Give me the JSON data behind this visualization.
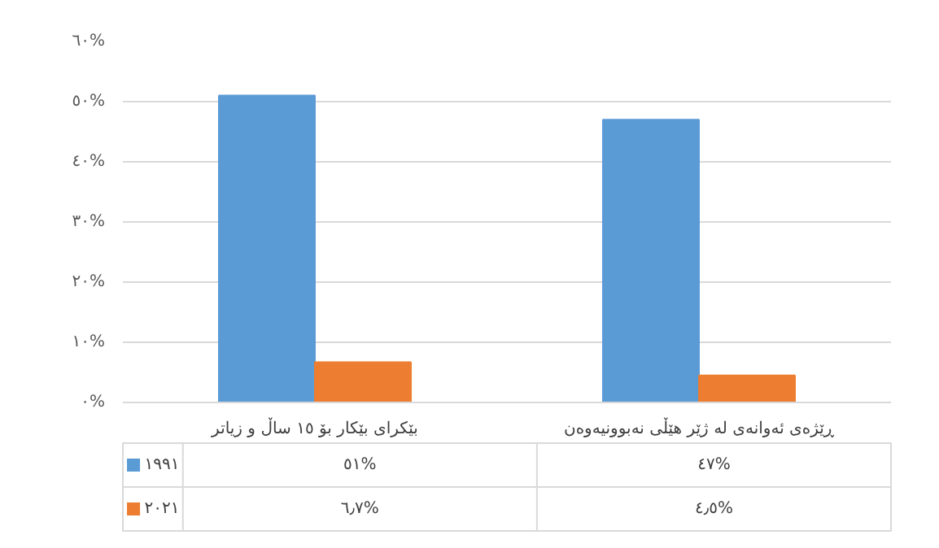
{
  "chart_data": {
    "type": "bar",
    "categories": [
      "بێکرای بێکار بۆ ١٥ ساڵ و زیاتر",
      "ڕێژەی ئەوانەی لە ژێر هێڵی نەبوونیەوەن"
    ],
    "series": [
      {
        "name": "١٩٩١",
        "color": "#5b9bd5",
        "values": [
          51,
          47
        ],
        "value_labels": [
          "٥١%",
          "٤٧%"
        ]
      },
      {
        "name": "٢٠٢١",
        "color": "#ed7d31",
        "values": [
          6.7,
          4.5
        ],
        "value_labels": [
          "٦٫٧%",
          "٤٫٥%"
        ]
      }
    ],
    "ylim": [
      0,
      60
    ],
    "yticks": [
      {
        "value": 0,
        "label": "٠%"
      },
      {
        "value": 10,
        "label": "١٠%"
      },
      {
        "value": 20,
        "label": "٢٠%"
      },
      {
        "value": 30,
        "label": "٣٠%"
      },
      {
        "value": 40,
        "label": "٤٠%"
      },
      {
        "value": 50,
        "label": "٥٠%"
      },
      {
        "value": 60,
        "label": "٦٠%"
      }
    ],
    "grid": "y",
    "legend": "bottom"
  }
}
